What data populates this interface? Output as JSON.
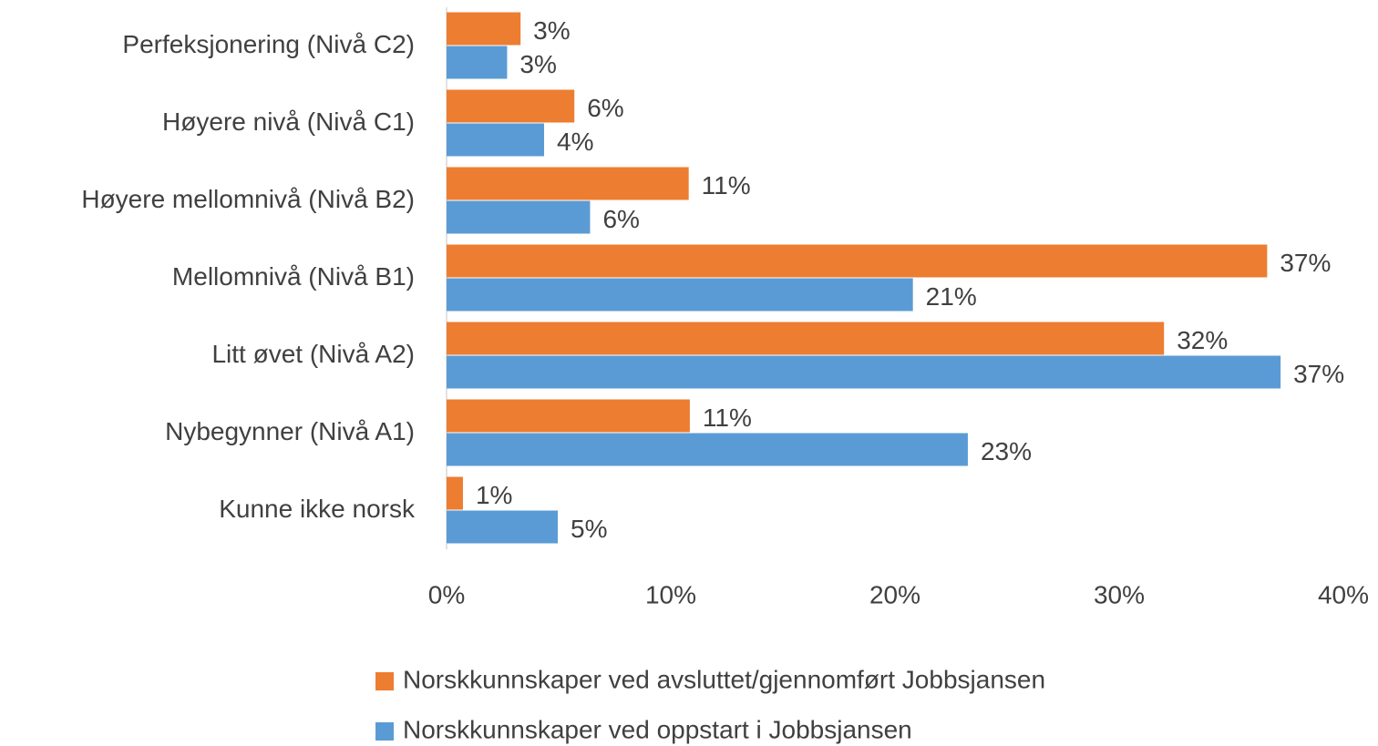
{
  "chart_data": {
    "type": "barh",
    "categories": [
      "Perfeksjonering (Nivå C2)",
      "Høyere nivå (Nivå C1)",
      "Høyere mellomnivå (Nivå B2)",
      "Mellomnivå (Nivå B1)",
      "Litt øvet (Nivå A2)",
      "Nybegynner (Nivå A1)",
      "Kunne ikke norsk"
    ],
    "series": [
      {
        "name": "Norskkunnskaper ved avsluttet/gjennomført Jobbsjansen",
        "color": "#ed7d31",
        "values": [
          3.3,
          5.7,
          10.8,
          36.6,
          32.0,
          10.85,
          0.73
        ],
        "value_labels": [
          "3%",
          "6%",
          "11%",
          "37%",
          "32%",
          "11%",
          "1%"
        ]
      },
      {
        "name": "Norskkunnskaper ved oppstart i Jobbsjansen",
        "color": "#5b9bd5",
        "values": [
          2.7,
          4.35,
          6.4,
          20.8,
          37.2,
          23.25,
          4.96
        ],
        "value_labels": [
          "3%",
          "4%",
          "6%",
          "21%",
          "37%",
          "23%",
          "5%"
        ]
      }
    ],
    "xlim": [
      0,
      40
    ],
    "xticks": [
      {
        "value": 0,
        "label": "0%"
      },
      {
        "value": 10,
        "label": "10%"
      },
      {
        "value": 20,
        "label": "20%"
      },
      {
        "value": 30,
        "label": "30%"
      },
      {
        "value": 40,
        "label": "40%"
      }
    ],
    "grid": false,
    "legend": "bottom"
  }
}
